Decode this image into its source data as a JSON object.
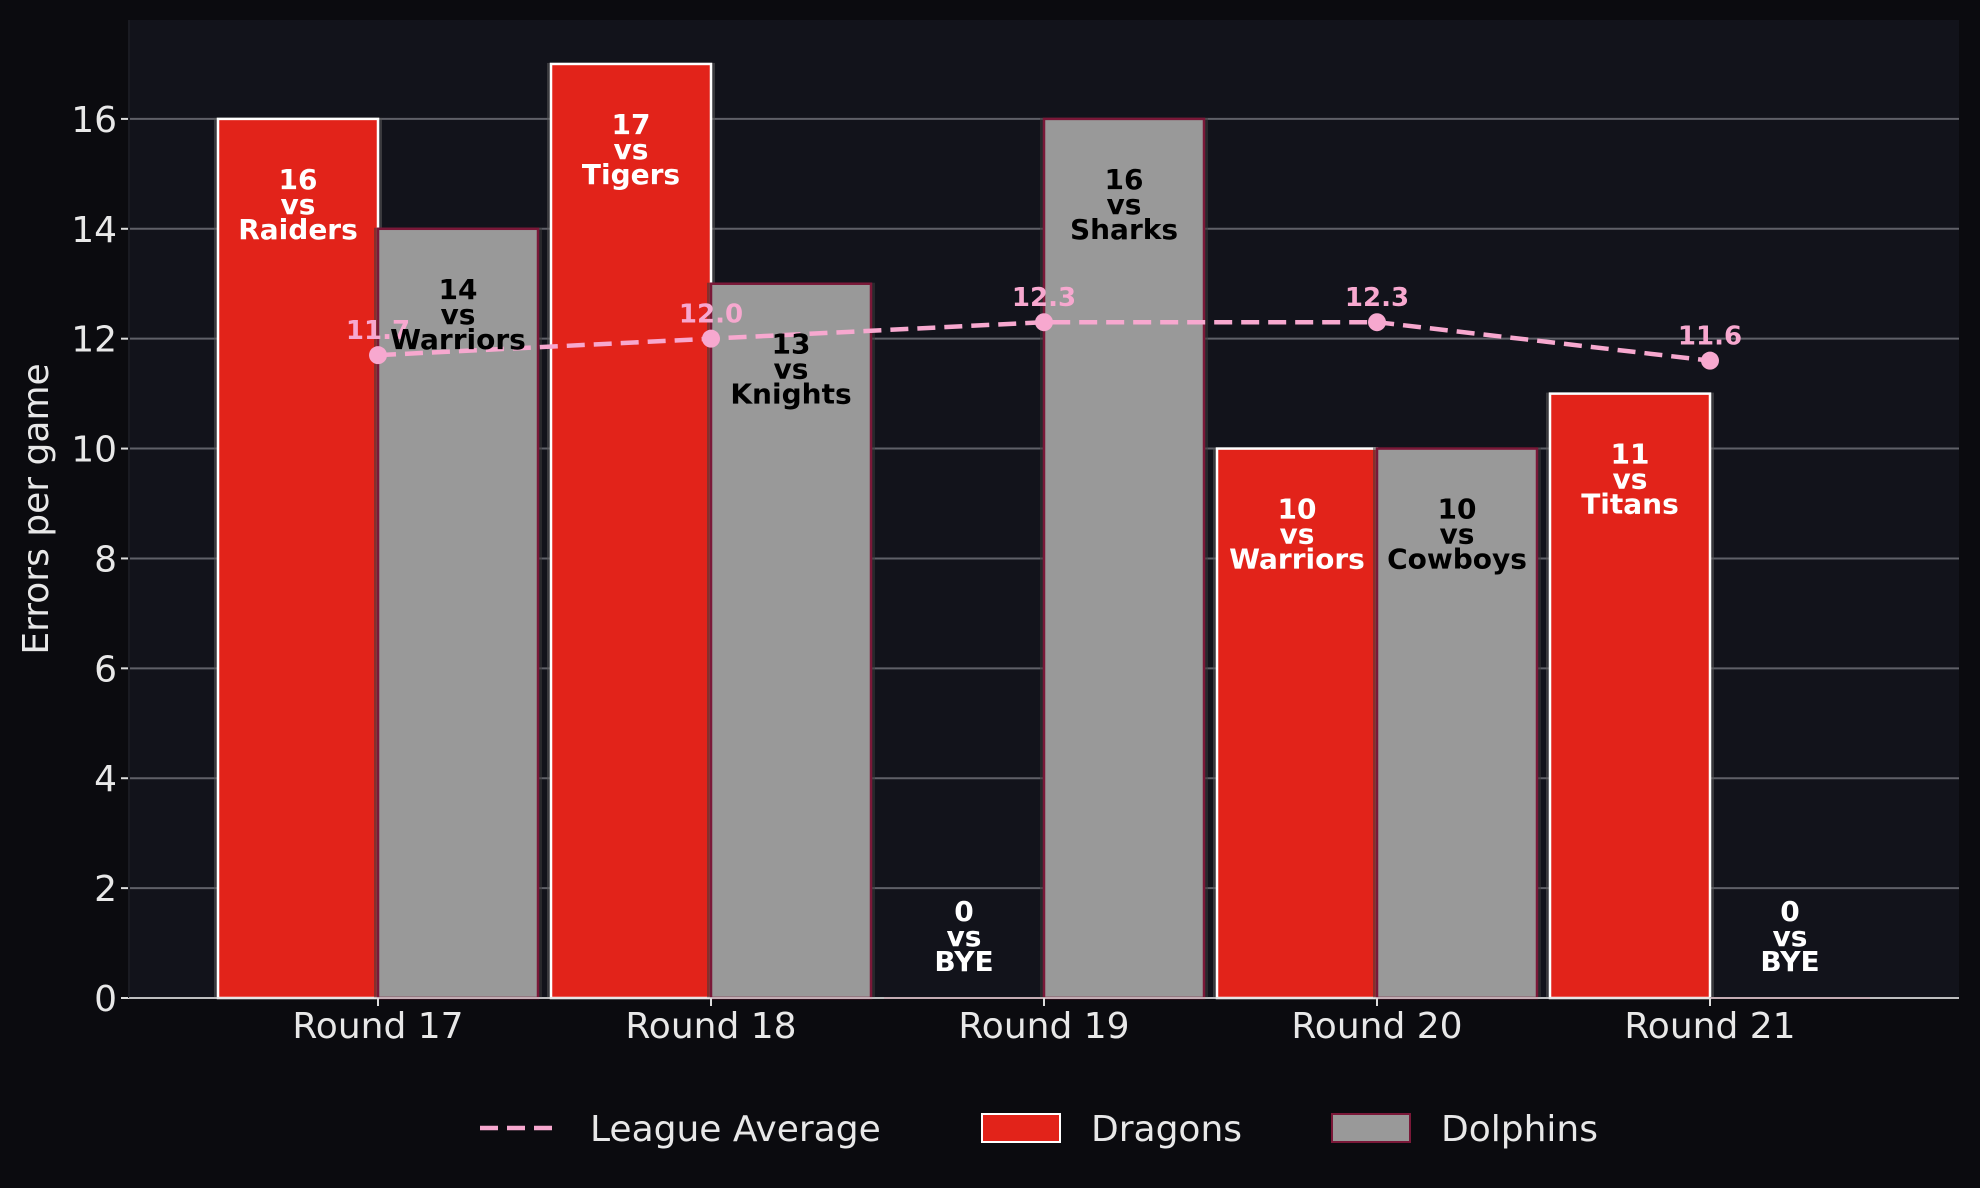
{
  "chart_data": {
    "type": "bar",
    "title": "",
    "xlabel": "",
    "ylabel": "Errors per game",
    "ylim": [
      0,
      17.8
    ],
    "yticks": [
      0,
      2,
      4,
      6,
      8,
      10,
      12,
      14,
      16
    ],
    "grid": "horizontal",
    "legend_position": "bottom-center",
    "categories": [
      "Round 17",
      "Round 18",
      "Round 19",
      "Round 20",
      "Round 21"
    ],
    "series": [
      {
        "name": "Dragons",
        "kind": "bar",
        "color": "#e2231a",
        "values": [
          16,
          17,
          0,
          10,
          11
        ],
        "opponents": [
          "Raiders",
          "Tigers",
          "BYE",
          "Warriors",
          "Titans"
        ]
      },
      {
        "name": "Dolphins",
        "kind": "bar",
        "color": "#999999",
        "values": [
          14,
          13,
          16,
          10,
          0
        ],
        "opponents": [
          "Warriors",
          "Knights",
          "Sharks",
          "Cowboys",
          "BYE"
        ]
      },
      {
        "name": "League Average",
        "kind": "line",
        "color": "#f7a8cf",
        "values": [
          11.7,
          12.0,
          12.3,
          12.3,
          11.6
        ],
        "labels": [
          "11.7",
          "12.0",
          "12.3",
          "12.3",
          "11.6"
        ]
      }
    ],
    "vs_text": "vs",
    "legend": [
      "League Average",
      "Dragons",
      "Dolphins"
    ]
  }
}
